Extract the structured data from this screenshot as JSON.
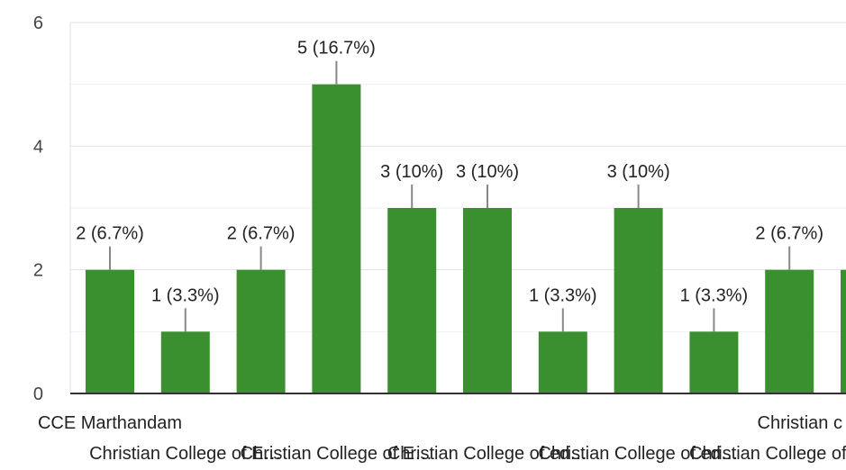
{
  "chart_data": {
    "type": "bar",
    "title": "",
    "xlabel": "",
    "ylabel": "",
    "ylim": [
      0,
      6
    ],
    "yticks": [
      0,
      2,
      4,
      6
    ],
    "grid": true,
    "bar_color": "#3a8f2f",
    "categories": [
      "CCE Marthandam",
      "Christian College of E…",
      "",
      "Christian College of E…",
      "",
      "Christian College of ed…",
      "",
      "Christian College of ed…",
      "",
      "Christian College of ed…",
      "Christian c"
    ],
    "values": [
      2,
      1,
      2,
      5,
      3,
      3,
      1,
      3,
      1,
      2,
      2
    ],
    "data_labels": [
      "2 (6.7%)",
      "1 (3.3%)",
      "2 (6.7%)",
      "5 (16.7%)",
      "3 (10%)",
      "3 (10%)",
      "1 (3.3%)",
      "3 (10%)",
      "1 (3.3%)",
      "2 (6.7%)",
      "2 ("
    ]
  }
}
